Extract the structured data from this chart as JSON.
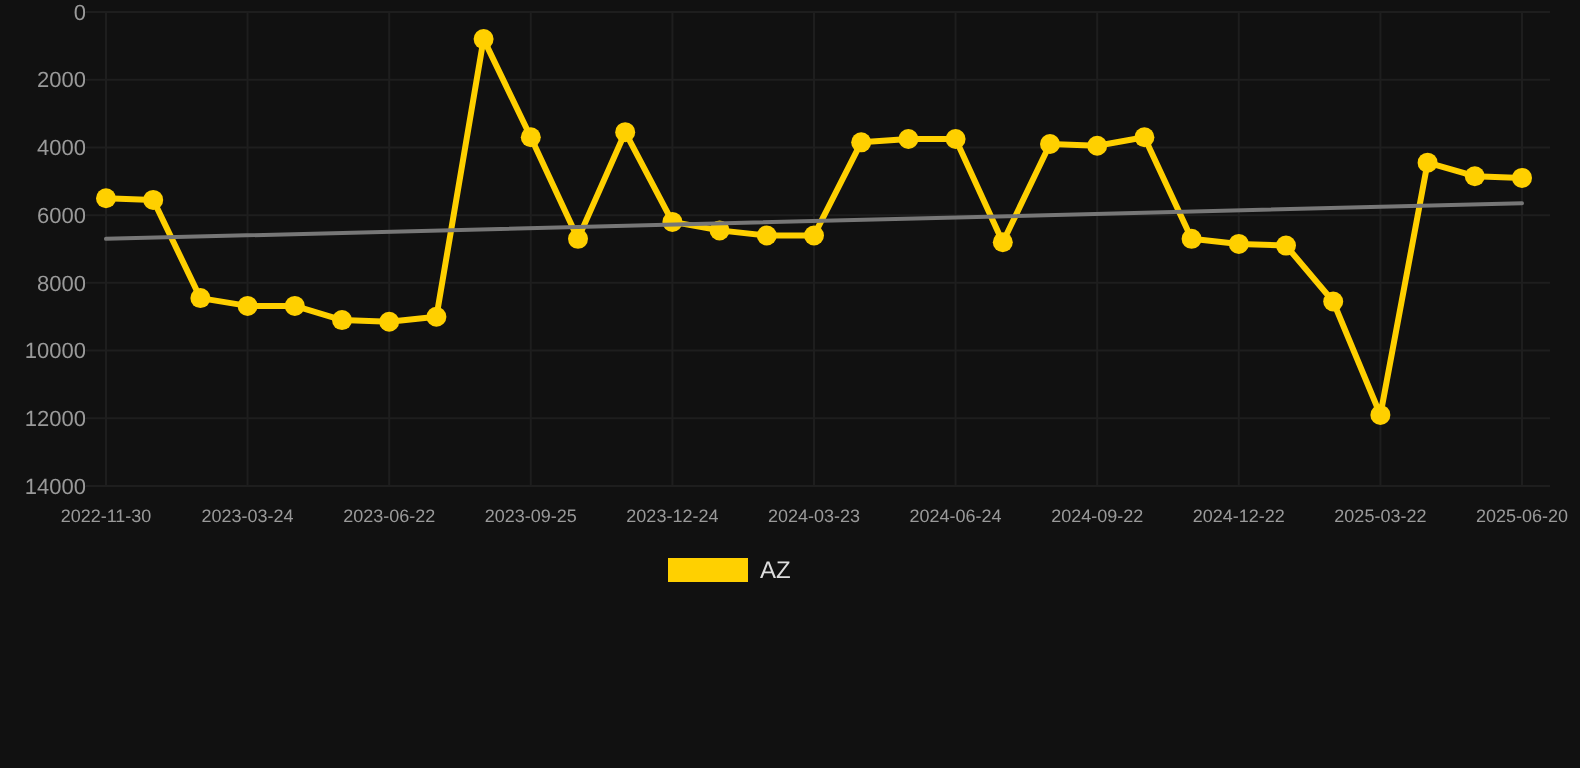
{
  "chart_data": {
    "type": "line",
    "categories": [
      "2022-11-30",
      null,
      null,
      "2023-03-24",
      null,
      null,
      "2023-06-22",
      null,
      null,
      "2023-09-25",
      null,
      null,
      "2023-12-24",
      null,
      null,
      "2024-03-23",
      null,
      null,
      "2024-06-24",
      null,
      null,
      "2024-09-22",
      null,
      null,
      "2024-12-22",
      null,
      null,
      "2025-03-22",
      null,
      null,
      "2025-06-20"
    ],
    "series": [
      {
        "name": "AZ",
        "color": "#ffd000",
        "marker": "circle",
        "values": [
          5500,
          5550,
          8450,
          8680,
          8680,
          9100,
          9150,
          9000,
          800,
          3700,
          6700,
          3550,
          6200,
          6450,
          6600,
          6600,
          3850,
          3750,
          3750,
          6800,
          3900,
          3950,
          3700,
          6700,
          6850,
          6900,
          8550,
          11900,
          4450,
          4850,
          4900
        ]
      },
      {
        "type": "line",
        "color": "#777777",
        "marker": "none",
        "values": [
          6700,
          null,
          null,
          null,
          null,
          null,
          null,
          null,
          null,
          null,
          null,
          null,
          null,
          null,
          null,
          null,
          null,
          null,
          null,
          null,
          null,
          null,
          null,
          null,
          null,
          null,
          null,
          null,
          null,
          null,
          5650
        ]
      }
    ],
    "ylim": [
      14000,
      0
    ],
    "yticks": [
      0,
      2000,
      4000,
      6000,
      8000,
      10000,
      12000,
      14000
    ],
    "grid": true,
    "legend": "bottom"
  }
}
